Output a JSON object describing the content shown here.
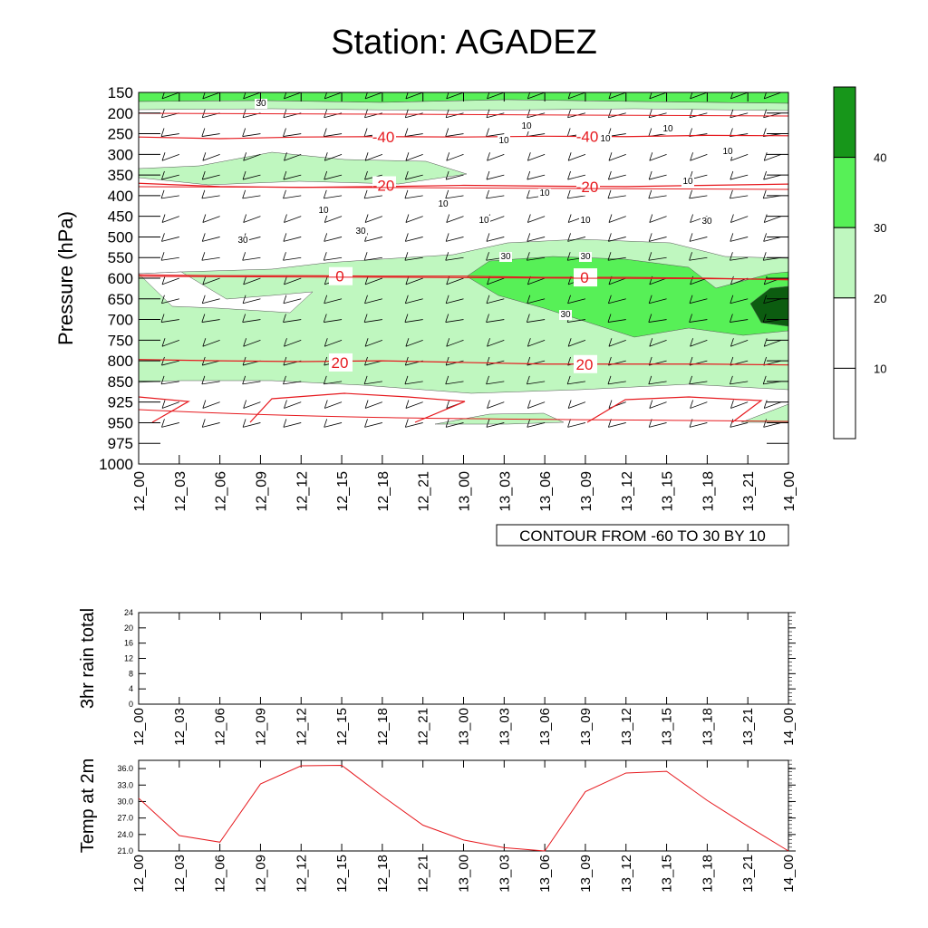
{
  "title": "Station: AGADEZ",
  "colors": {
    "shade_20_30": "#bff7bf",
    "shade_30_40": "#57f057",
    "shade_40_plus": "#17961a",
    "shade_darkest": "#0c5c10",
    "contour_temp": "#e6191e",
    "wind_barb": "#000000"
  },
  "time_ticks": [
    "12_00",
    "12_03",
    "12_06",
    "12_09",
    "12_12",
    "12_15",
    "12_18",
    "12_21",
    "13_00",
    "13_03",
    "13_06",
    "13_09",
    "13_12",
    "13_15",
    "13_18",
    "13_21",
    "14_00"
  ],
  "chart_data": [
    {
      "type": "heatmap",
      "name": "cross-section",
      "ylabel": "Pressure (hPa)",
      "pressure_levels": [
        150,
        200,
        250,
        300,
        350,
        400,
        450,
        500,
        550,
        600,
        650,
        700,
        750,
        800,
        850,
        925,
        950,
        975,
        1000
      ],
      "footer_label": "CONTOUR FROM -60 TO 30 BY 10",
      "colorbar": {
        "levels": [
          10,
          20,
          30,
          40
        ],
        "colors": [
          "#ffffff",
          "#ffffff",
          "#bff7bf",
          "#57f057",
          "#17961a"
        ]
      },
      "temperature_contours": [
        {
          "label": "-40",
          "p": [
            258,
            262,
            258,
            257,
            258,
            256,
            257,
            254,
            255
          ]
        },
        {
          "label": "-20",
          "p": [
            370,
            378,
            380,
            378,
            375,
            377,
            378,
            375,
            372
          ]
        },
        {
          "label": "0",
          "p": [
            592,
            594,
            594,
            595,
            595,
            598,
            598,
            600,
            604
          ]
        },
        {
          "label": "20",
          "p": [
            797,
            800,
            802,
            800,
            804,
            808,
            808,
            808,
            810
          ]
        }
      ],
      "speed_contour_labels": [
        "30",
        "10",
        "10",
        "10",
        "10",
        "10",
        "10",
        "10",
        "10",
        "10",
        "10",
        "10",
        "30",
        "30",
        "30",
        "30",
        "30",
        "30"
      ]
    },
    {
      "type": "line",
      "name": "rain",
      "ylabel": "3hr rain total",
      "yticks": [
        "0",
        "4",
        "8",
        "12",
        "16",
        "20",
        "24"
      ],
      "ylim": [
        0,
        24
      ],
      "x": [
        "12_00",
        "12_03",
        "12_06",
        "12_09",
        "12_12",
        "12_15",
        "12_18",
        "12_21",
        "13_00",
        "13_03",
        "13_06",
        "13_09",
        "13_12",
        "13_15",
        "13_18",
        "13_21",
        "14_00"
      ],
      "values": [
        0,
        0,
        0,
        0,
        0,
        0,
        0,
        0,
        0,
        0,
        0,
        0,
        0,
        0,
        0,
        0,
        0
      ]
    },
    {
      "type": "line",
      "name": "temp",
      "ylabel": "Temp at 2m",
      "yticks": [
        "21.0",
        "24.0",
        "27.0",
        "30.0",
        "33.0",
        "36.0"
      ],
      "ylim": [
        21,
        37.5
      ],
      "x": [
        "12_00",
        "12_03",
        "12_06",
        "12_09",
        "12_12",
        "12_15",
        "12_18",
        "12_21",
        "13_00",
        "13_03",
        "13_06",
        "13_09",
        "13_12",
        "13_15",
        "13_18",
        "13_21",
        "14_00"
      ],
      "values": [
        30.6,
        23.8,
        22.6,
        33.2,
        36.5,
        36.6,
        31.0,
        25.7,
        23.0,
        21.6,
        21.0,
        31.8,
        35.2,
        35.5,
        30.2,
        25.5,
        21.0
      ]
    }
  ]
}
